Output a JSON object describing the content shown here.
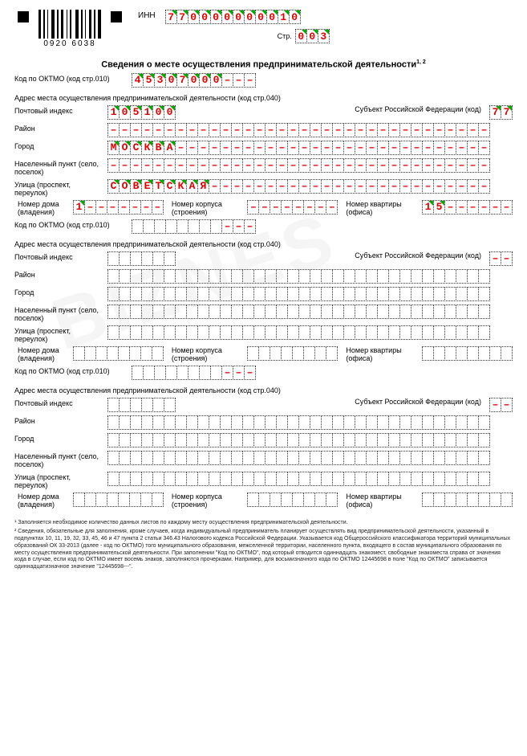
{
  "barcode_number": "0920 6038",
  "inn_label": "ИНН",
  "inn": [
    "7",
    "7",
    "0",
    "0",
    "0",
    "0",
    "0",
    "0",
    "0",
    "0",
    "1",
    "0"
  ],
  "str_label": "Стр.",
  "str": [
    "0",
    "0",
    "3"
  ],
  "title": "Сведения о месте осуществления предпринимательской деятельности",
  "title_sup": "1, 2",
  "labels": {
    "oktmo": "Код по ОКТМО (код стр.010)",
    "address_hdr": "Адрес места осуществления предпринимательской деятельности (код стр.040)",
    "post_index": "Почтовый индекс",
    "subject_rf": "Субъект Российской Федерации (код)",
    "district": "Район",
    "city": "Город",
    "settlement": "Населенный пункт (село, поселок)",
    "street": "Улица (проспект, переулок)",
    "house": "Номер дома (владения)",
    "building": "Номер корпуса (строения)",
    "flat": "Номер квартиры (офиса)"
  },
  "blocks": [
    {
      "oktmo": [
        "4",
        "5",
        "3",
        "0",
        "7",
        "0",
        "0",
        "0",
        "–",
        "–",
        "–"
      ],
      "post_index": [
        "1",
        "0",
        "5",
        "1",
        "0",
        "0"
      ],
      "subject_rf": [
        "7",
        "7"
      ],
      "district": [
        "–",
        "–",
        "–",
        "–",
        "–",
        "–",
        "–",
        "–",
        "–",
        "–",
        "–",
        "–",
        "–",
        "–",
        "–",
        "–",
        "–",
        "–",
        "–",
        "–",
        "–",
        "–",
        "–",
        "–",
        "–",
        "–",
        "–",
        "–",
        "–",
        "–",
        "–",
        "–",
        "–",
        "–"
      ],
      "city": [
        "М",
        "О",
        "С",
        "К",
        "В",
        "А",
        "–",
        "–",
        "–",
        "–",
        "–",
        "–",
        "–",
        "–",
        "–",
        "–",
        "–",
        "–",
        "–",
        "–",
        "–",
        "–",
        "–",
        "–",
        "–",
        "–",
        "–",
        "–",
        "–",
        "–",
        "–",
        "–",
        "–",
        "–"
      ],
      "settlement": [
        "–",
        "–",
        "–",
        "–",
        "–",
        "–",
        "–",
        "–",
        "–",
        "–",
        "–",
        "–",
        "–",
        "–",
        "–",
        "–",
        "–",
        "–",
        "–",
        "–",
        "–",
        "–",
        "–",
        "–",
        "–",
        "–",
        "–",
        "–",
        "–",
        "–",
        "–",
        "–",
        "–",
        "–"
      ],
      "street": [
        "С",
        "О",
        "В",
        "Е",
        "Т",
        "С",
        "К",
        "А",
        "Я",
        "–",
        "–",
        "–",
        "–",
        "–",
        "–",
        "–",
        "–",
        "–",
        "–",
        "–",
        "–",
        "–",
        "–",
        "–",
        "–",
        "–",
        "–",
        "–",
        "–",
        "–",
        "–",
        "–",
        "–",
        "–"
      ],
      "house": [
        "1",
        "–",
        "–",
        "–",
        "–",
        "–",
        "–",
        "–"
      ],
      "building": [
        "–",
        "–",
        "–",
        "–",
        "–",
        "–",
        "–",
        "–"
      ],
      "flat": [
        "1",
        "5",
        "–",
        "–",
        "–",
        "–",
        "–",
        "–"
      ]
    },
    {
      "oktmo": [
        "",
        "",
        "",
        "",
        "",
        "",
        "",
        "",
        "–",
        "–",
        "–"
      ],
      "post_index": [
        "",
        "",
        "",
        "",
        "",
        ""
      ],
      "subject_rf": [
        "–",
        "–"
      ],
      "district": [
        "",
        "",
        "",
        "",
        "",
        "",
        "",
        "",
        "",
        "",
        "",
        "",
        "",
        "",
        "",
        "",
        "",
        "",
        "",
        "",
        "",
        "",
        "",
        "",
        "",
        "",
        "",
        "",
        "",
        "",
        "",
        "",
        "",
        ""
      ],
      "city": [
        "",
        "",
        "",
        "",
        "",
        "",
        "",
        "",
        "",
        "",
        "",
        "",
        "",
        "",
        "",
        "",
        "",
        "",
        "",
        "",
        "",
        "",
        "",
        "",
        "",
        "",
        "",
        "",
        "",
        "",
        "",
        "",
        "",
        ""
      ],
      "settlement": [
        "",
        "",
        "",
        "",
        "",
        "",
        "",
        "",
        "",
        "",
        "",
        "",
        "",
        "",
        "",
        "",
        "",
        "",
        "",
        "",
        "",
        "",
        "",
        "",
        "",
        "",
        "",
        "",
        "",
        "",
        "",
        "",
        "",
        ""
      ],
      "street": [
        "",
        "",
        "",
        "",
        "",
        "",
        "",
        "",
        "",
        "",
        "",
        "",
        "",
        "",
        "",
        "",
        "",
        "",
        "",
        "",
        "",
        "",
        "",
        "",
        "",
        "",
        "",
        "",
        "",
        "",
        "",
        "",
        "",
        ""
      ],
      "house": [
        "",
        "",
        "",
        "",
        "",
        "",
        "",
        ""
      ],
      "building": [
        "",
        "",
        "",
        "",
        "",
        "",
        "",
        ""
      ],
      "flat": [
        "",
        "",
        "",
        "",
        "",
        "",
        "",
        ""
      ]
    },
    {
      "oktmo": [
        "",
        "",
        "",
        "",
        "",
        "",
        "",
        "",
        "–",
        "–",
        "–"
      ],
      "post_index": [
        "",
        "",
        "",
        "",
        "",
        ""
      ],
      "subject_rf": [
        "–",
        "–"
      ],
      "district": [
        "",
        "",
        "",
        "",
        "",
        "",
        "",
        "",
        "",
        "",
        "",
        "",
        "",
        "",
        "",
        "",
        "",
        "",
        "",
        "",
        "",
        "",
        "",
        "",
        "",
        "",
        "",
        "",
        "",
        "",
        "",
        "",
        "",
        ""
      ],
      "city": [
        "",
        "",
        "",
        "",
        "",
        "",
        "",
        "",
        "",
        "",
        "",
        "",
        "",
        "",
        "",
        "",
        "",
        "",
        "",
        "",
        "",
        "",
        "",
        "",
        "",
        "",
        "",
        "",
        "",
        "",
        "",
        "",
        "",
        ""
      ],
      "settlement": [
        "",
        "",
        "",
        "",
        "",
        "",
        "",
        "",
        "",
        "",
        "",
        "",
        "",
        "",
        "",
        "",
        "",
        "",
        "",
        "",
        "",
        "",
        "",
        "",
        "",
        "",
        "",
        "",
        "",
        "",
        "",
        "",
        "",
        ""
      ],
      "street": [
        "",
        "",
        "",
        "",
        "",
        "",
        "",
        "",
        "",
        "",
        "",
        "",
        "",
        "",
        "",
        "",
        "",
        "",
        "",
        "",
        "",
        "",
        "",
        "",
        "",
        "",
        "",
        "",
        "",
        "",
        "",
        "",
        "",
        ""
      ],
      "house": [
        "",
        "",
        "",
        "",
        "",
        "",
        "",
        ""
      ],
      "building": [
        "",
        "",
        "",
        "",
        "",
        "",
        "",
        ""
      ],
      "flat": [
        "",
        "",
        "",
        "",
        "",
        "",
        "",
        ""
      ]
    }
  ],
  "footnotes": [
    "¹ Заполняется необходимое количество данных листов по каждому месту осуществления предпринимательской деятельности.",
    "² Сведения, обязательные для заполнения, кроме случаев, когда индивидуальный предприниматель планирует осуществлять вид предпринимательской деятельности, указанный в подпунктах 10, 11, 19, 32, 33, 45, 46 и 47 пункта 2 статьи 346.43 Налогового кодекса Российской Федерации. Указывается код Общероссийского классификатора территорий муниципальных образований ОК 33-2013 (далее - код по ОКТМО) того муниципального образования, межселенной территории, населенного пункта, входящего в состав муниципального образования по месту осуществления предпринимательской деятельности. При заполнении \"Код по ОКТМО\", под который отводится одиннадцать знакомест, свободные знакоместа справа от значения кода в случае, если код по ОКТМО имеет восемь знаков, заполняются прочерками. Например, для восьмизначного кода по ОКТМО 12445698 в поле \"Код по ОКТМО\" записывается одиннадцатизначное значение \"12445698---\"."
  ],
  "colors": {
    "value": "#d00",
    "tick": "#0a0",
    "border": "#333"
  }
}
